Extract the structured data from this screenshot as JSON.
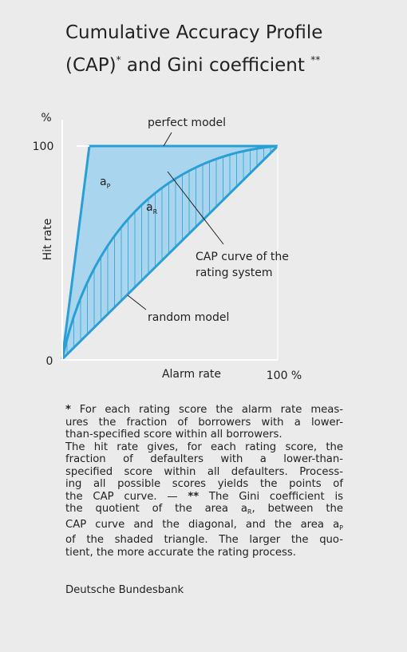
{
  "title": {
    "line1": "Cumulative Accuracy Profile",
    "line2": [
      "(CAP)",
      "*",
      " and Gini coefficient ",
      "**"
    ]
  },
  "diagram": {
    "y_unit": "%",
    "y_top": "100",
    "origin": "0",
    "y_axis_label": "Hit rate",
    "x_axis_label": "Alarm rate",
    "x_end": "100 %",
    "perfect_model": "perfect model",
    "random_model": "random model",
    "cap_curve": [
      "CAP curve of the",
      "rating system"
    ],
    "area_p": {
      "base": "a",
      "sub": "P"
    },
    "area_r": {
      "base": "a",
      "sub": "R"
    }
  },
  "footnote": [
    [
      "*",
      " For each rating score the alarm rate meas-"
    ],
    [
      "ures the fraction of borrowers with a lower-"
    ],
    [
      "than-specified score within all borrowers."
    ],
    [
      "The hit rate gives, for each rating score, the"
    ],
    [
      "fraction of defaulters with a lower-than-"
    ],
    [
      "specified score within all defaulters. Process-"
    ],
    [
      "ing all possible scores yields the points of"
    ],
    [
      "the CAP curve. — ",
      "**",
      " The Gini coefficient is"
    ],
    [
      "the quotient of the area a",
      "R",
      ", between the"
    ],
    [
      "CAP curve and the diagonal, and the area a",
      "P"
    ],
    [
      "of the shaded triangle. The larger the quo-"
    ],
    [
      "tient, the more accurate the rating process."
    ]
  ],
  "source": "Deutsche Bundesbank"
}
